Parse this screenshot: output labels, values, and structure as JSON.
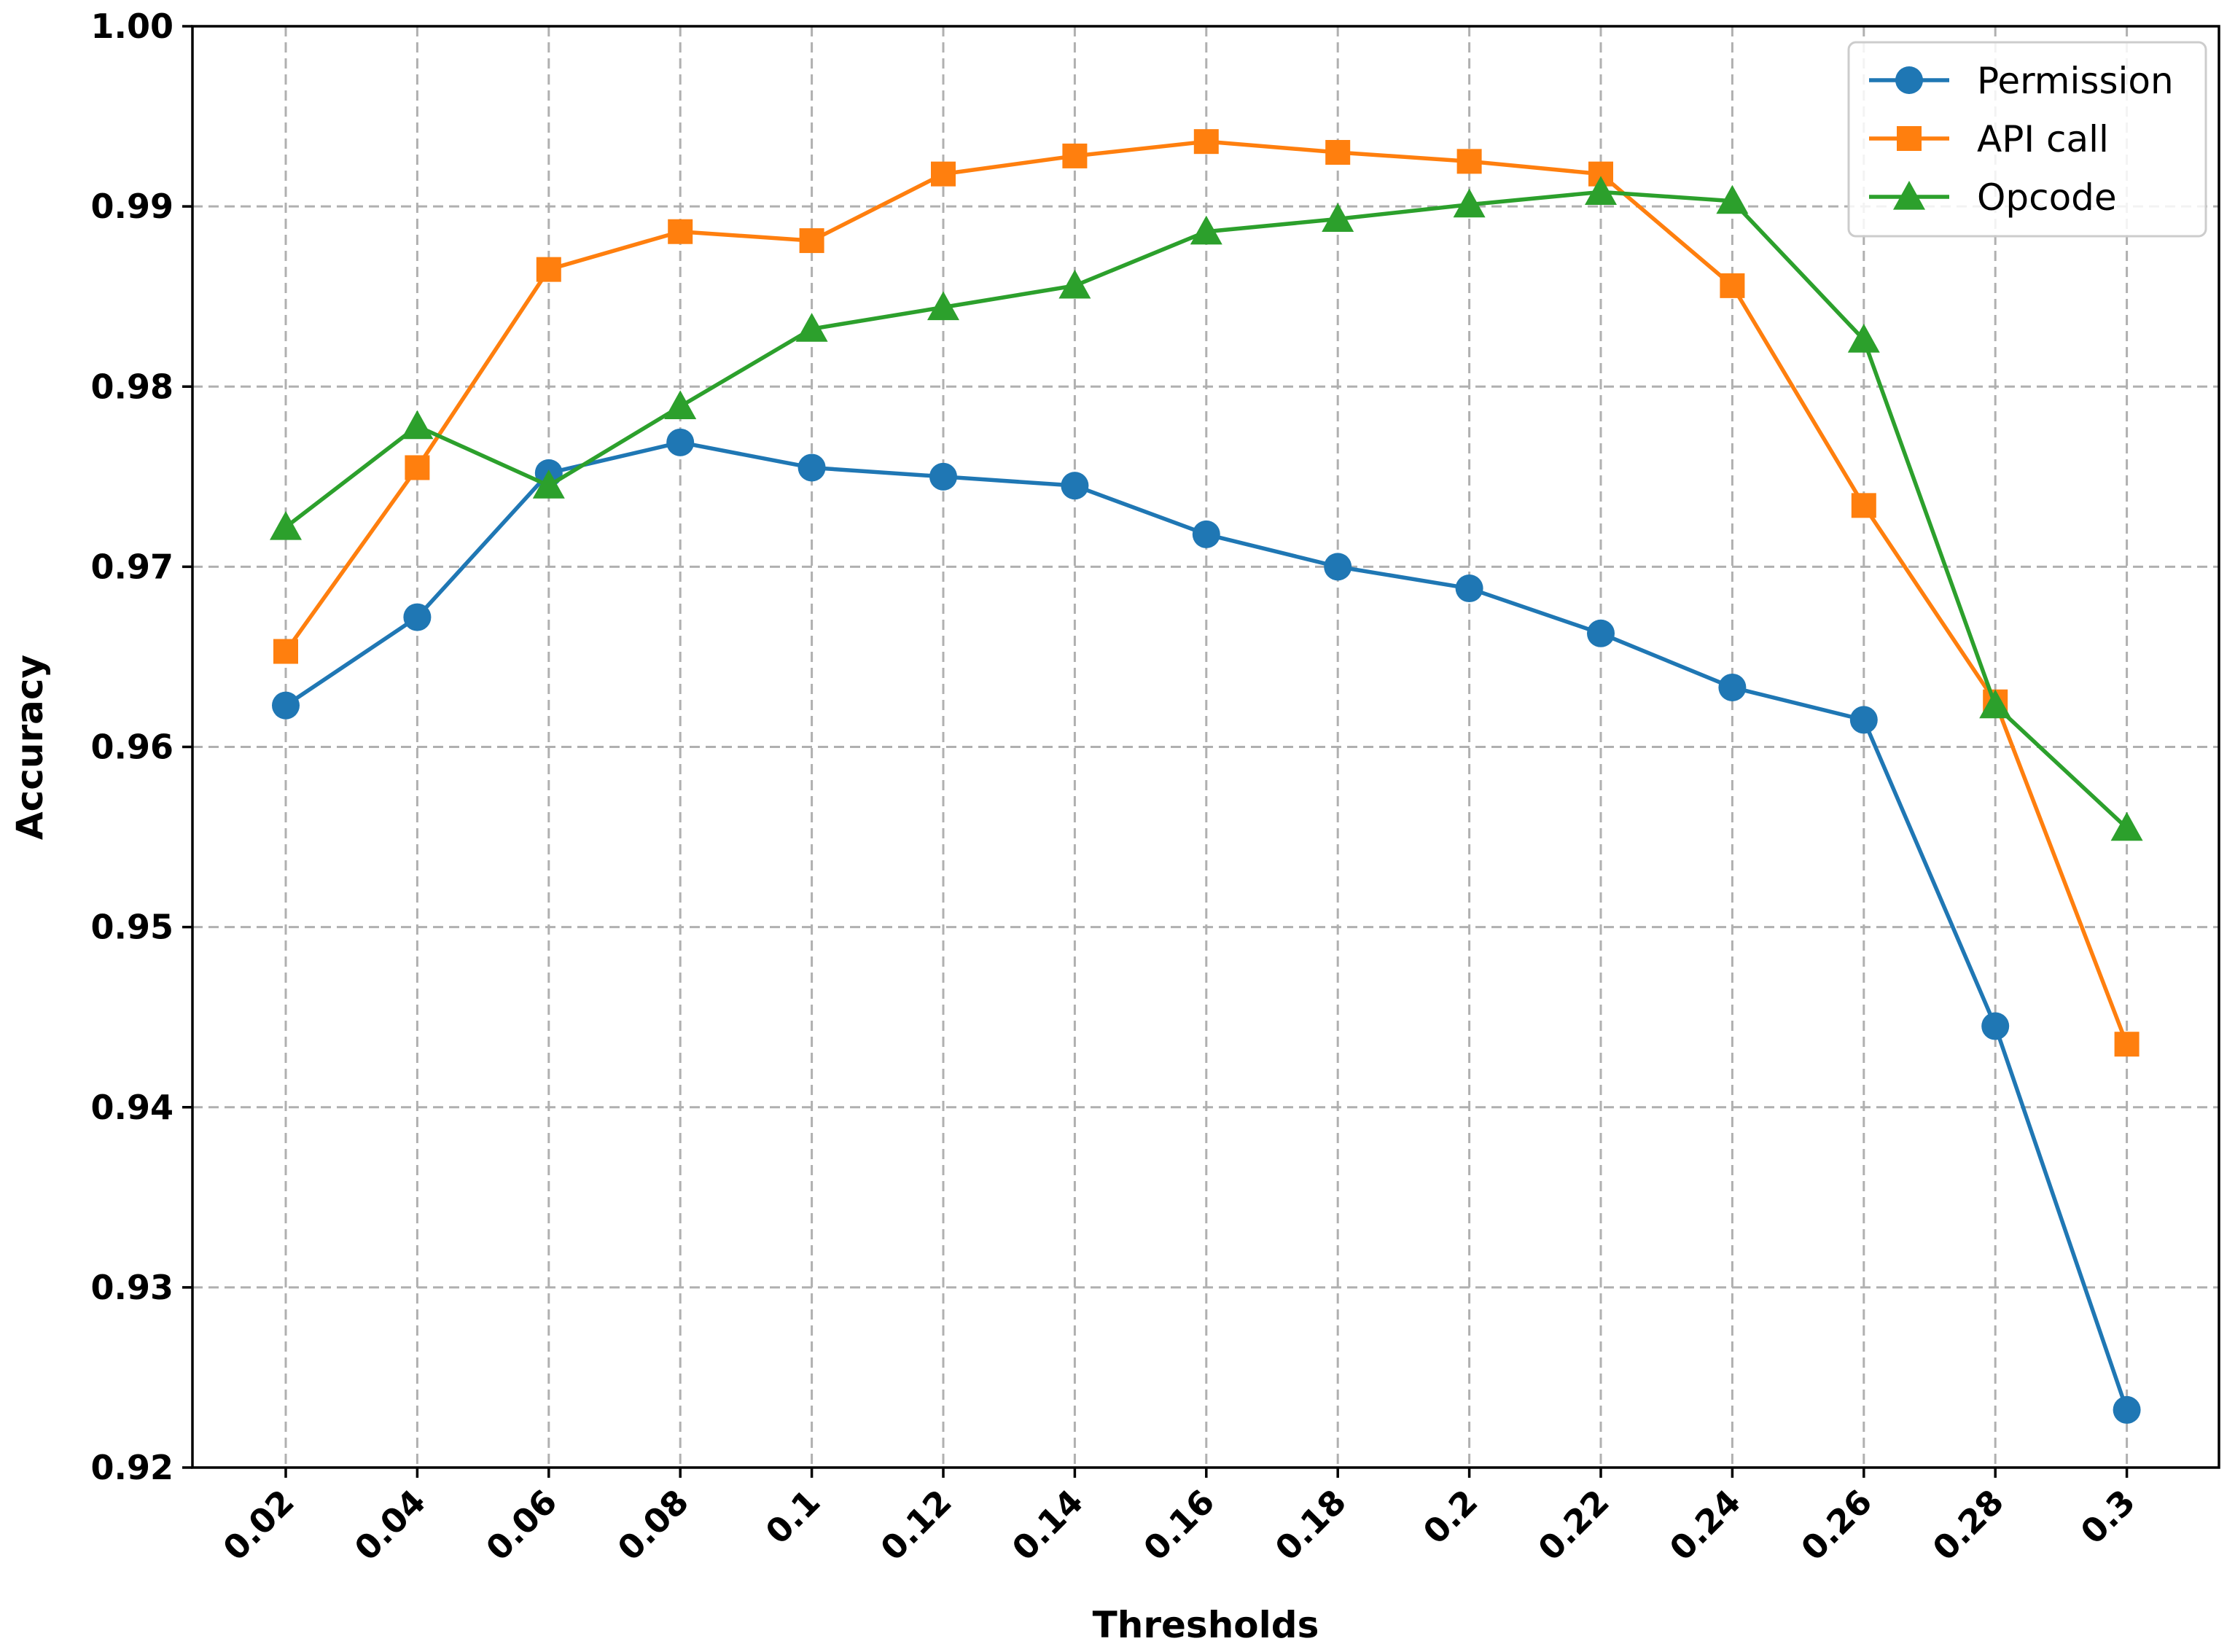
{
  "chart_data": {
    "type": "line",
    "xlabel": "Thresholds",
    "ylabel": "Accuracy",
    "categories": [
      "0.02",
      "0.04",
      "0.06",
      "0.08",
      "0.1",
      "0.12",
      "0.14",
      "0.16",
      "0.18",
      "0.2",
      "0.22",
      "0.24",
      "0.26",
      "0.28",
      "0.3"
    ],
    "yticks": [
      "0.92",
      "0.93",
      "0.94",
      "0.95",
      "0.96",
      "0.97",
      "0.98",
      "0.99",
      "1.00"
    ],
    "ylim": [
      0.92,
      1.0
    ],
    "grid": true,
    "legend_position": "top-right",
    "series": [
      {
        "name": "Permission",
        "color": "#1f77b4",
        "marker": "circle",
        "values": [
          0.9623,
          0.9672,
          0.9752,
          0.9769,
          0.9755,
          0.975,
          0.9745,
          0.9718,
          0.97,
          0.9688,
          0.9663,
          0.9633,
          0.9615,
          0.9445,
          0.9232
        ]
      },
      {
        "name": "API call",
        "color": "#ff7f0e",
        "marker": "square",
        "values": [
          0.9653,
          0.9755,
          0.9865,
          0.9886,
          0.9881,
          0.9918,
          0.9928,
          0.9936,
          0.993,
          0.9925,
          0.9918,
          0.9856,
          0.9734,
          0.9625,
          0.9435
        ]
      },
      {
        "name": "Opcode",
        "color": "#2ca02c",
        "marker": "triangle",
        "values": [
          0.9722,
          0.9778,
          0.9745,
          0.9789,
          0.9832,
          0.9844,
          0.9856,
          0.9886,
          0.9893,
          0.9901,
          0.9908,
          0.9903,
          0.9826,
          0.9623,
          0.9555
        ]
      }
    ]
  }
}
